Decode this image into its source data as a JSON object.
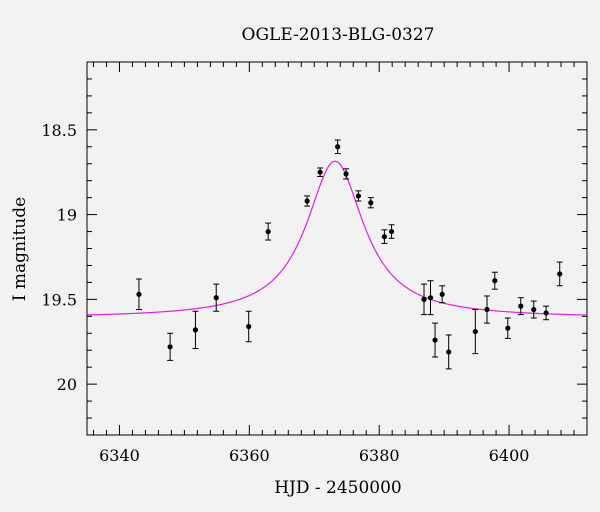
{
  "chart_data": {
    "type": "scatter",
    "title": "OGLE-2013-BLG-0327",
    "xlabel": "HJD - 2450000",
    "ylabel": "I magnitude",
    "xlim": [
      6335,
      6412
    ],
    "ylim": [
      20.3,
      18.1
    ],
    "y_inverted": true,
    "x_ticks": [
      6340,
      6360,
      6380,
      6400
    ],
    "y_ticks": [
      18.5,
      19,
      19.5,
      20
    ],
    "x_tick_labels": [
      "6340",
      "6360",
      "6380",
      "6400"
    ],
    "y_tick_labels": [
      "18.5",
      "19",
      "19.5",
      "20"
    ],
    "grid": false,
    "colors": {
      "data": "#000000",
      "model": "#e020e0",
      "background": "#f2f2f2"
    },
    "series": [
      {
        "kind": "points_with_errorbars",
        "points": [
          {
            "x": 6343.0,
            "y": 19.47,
            "err": 0.09
          },
          {
            "x": 6347.8,
            "y": 19.78,
            "err": 0.08
          },
          {
            "x": 6351.7,
            "y": 19.68,
            "err": 0.11
          },
          {
            "x": 6354.9,
            "y": 19.49,
            "err": 0.08
          },
          {
            "x": 6359.9,
            "y": 19.66,
            "err": 0.09
          },
          {
            "x": 6362.9,
            "y": 19.1,
            "err": 0.05
          },
          {
            "x": 6368.9,
            "y": 18.92,
            "err": 0.03
          },
          {
            "x": 6370.9,
            "y": 18.75,
            "err": 0.025
          },
          {
            "x": 6373.6,
            "y": 18.6,
            "err": 0.04
          },
          {
            "x": 6374.9,
            "y": 18.76,
            "err": 0.03
          },
          {
            "x": 6376.8,
            "y": 18.89,
            "err": 0.03
          },
          {
            "x": 6378.7,
            "y": 18.93,
            "err": 0.03
          },
          {
            "x": 6380.8,
            "y": 19.13,
            "err": 0.04
          },
          {
            "x": 6381.9,
            "y": 19.1,
            "err": 0.04
          },
          {
            "x": 6386.9,
            "y": 19.5,
            "err": 0.09
          },
          {
            "x": 6387.9,
            "y": 19.49,
            "err": 0.1
          },
          {
            "x": 6388.6,
            "y": 19.74,
            "err": 0.1
          },
          {
            "x": 6389.7,
            "y": 19.47,
            "err": 0.05
          },
          {
            "x": 6390.7,
            "y": 19.81,
            "err": 0.1
          },
          {
            "x": 6394.8,
            "y": 19.69,
            "err": 0.13
          },
          {
            "x": 6396.6,
            "y": 19.56,
            "err": 0.08
          },
          {
            "x": 6397.8,
            "y": 19.39,
            "err": 0.05
          },
          {
            "x": 6399.8,
            "y": 19.67,
            "err": 0.06
          },
          {
            "x": 6401.8,
            "y": 19.54,
            "err": 0.05
          },
          {
            "x": 6403.8,
            "y": 19.56,
            "err": 0.05
          },
          {
            "x": 6405.7,
            "y": 19.58,
            "err": 0.04
          },
          {
            "x": 6407.8,
            "y": 19.35,
            "err": 0.07
          }
        ]
      },
      {
        "kind": "model_curve",
        "model": {
          "t0": 6373.2,
          "baseline": 19.61,
          "peak": 18.685,
          "width": 5.4
        }
      }
    ]
  }
}
